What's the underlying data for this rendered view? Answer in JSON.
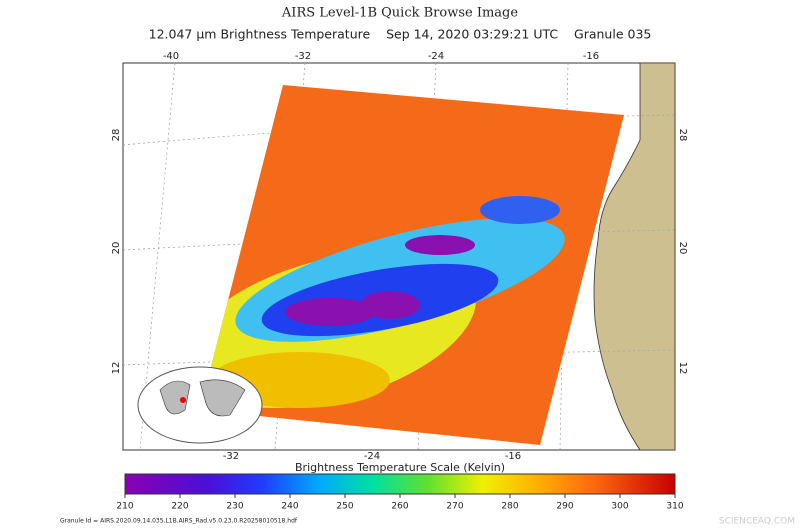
{
  "header": {
    "title": "AIRS Level-1B Quick Browse Image",
    "subtitle": "12.047 µm Brightness Temperature    Sep 14, 2020 03:29:21 UTC    Granule 035"
  },
  "map": {
    "top_lon_labels": [
      "-40",
      "-32",
      "-24",
      "-16"
    ],
    "bottom_lon_labels": [
      "-32",
      "-24",
      "-16"
    ],
    "left_lat_labels": [
      "28",
      "20",
      "12"
    ],
    "right_lat_labels": [
      "28",
      "20",
      "12"
    ]
  },
  "colorbar": {
    "title": "Brightness Temperature Scale (Kelvin)",
    "ticks": [
      210,
      220,
      230,
      240,
      250,
      260,
      270,
      280,
      290,
      300,
      310
    ]
  },
  "footer": {
    "granule_id": "Granule Id = AIRS.2020.09.14.035.L1B.AIRS_Rad.v5.0.23.0.R20258010518.hdf",
    "watermark": "SCIENCEAQ.COM"
  }
}
